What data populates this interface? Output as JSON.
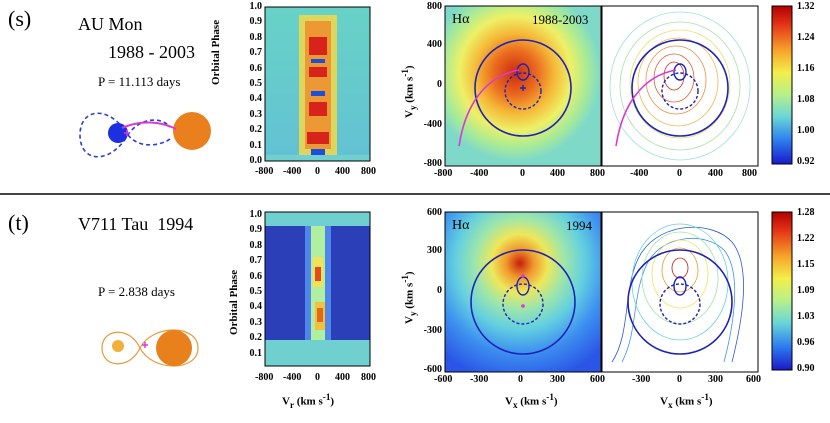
{
  "panels": [
    {
      "label": "(s)",
      "star": "AU Mon",
      "years": "1988 - 2003",
      "period": "P = 11.113 days",
      "line": "Hα",
      "map_years": "1988-2003",
      "phase_ticks": [
        "0.0",
        "0.1",
        "0.2",
        "0.3",
        "0.4",
        "0.5",
        "0.6",
        "0.7",
        "0.8",
        "0.9",
        "1.0"
      ],
      "vr_ticks": [
        "-800",
        "-400",
        "0",
        "400",
        "800"
      ],
      "vy_ticks": [
        "800",
        "400",
        "0",
        "-400",
        "-800"
      ],
      "vx_ticks": [
        "-800",
        "-400",
        "0",
        "400",
        "800"
      ],
      "vx_ticks_right": [
        "-400",
        "0",
        "400",
        "800"
      ],
      "colorbar_ticks": [
        "1.32",
        "1.24",
        "1.16",
        "1.08",
        "1.00",
        "0.92"
      ]
    },
    {
      "label": "(t)",
      "star": "V711 Tau",
      "years": "1994",
      "period": "P = 2.838 days",
      "line": "Hα",
      "map_years": "1994",
      "phase_ticks": [
        "0.1",
        "0.2",
        "0.3",
        "0.4",
        "0.5",
        "0.6",
        "0.7",
        "0.8",
        "0.9",
        "1.0"
      ],
      "vr_ticks": [
        "-800",
        "-400",
        "0",
        "400",
        "800"
      ],
      "vy_ticks": [
        "600",
        "300",
        "0",
        "-300",
        "-600"
      ],
      "vx_ticks": [
        "-600",
        "-300",
        "0",
        "300",
        "600"
      ],
      "vx_ticks_right": [
        "-300",
        "0",
        "300",
        "600"
      ],
      "colorbar_ticks": [
        "1.28",
        "1.22",
        "1.15",
        "1.09",
        "1.03",
        "0.96",
        "0.90"
      ]
    }
  ],
  "axis_labels": {
    "orbital_phase": "Orbital Phase",
    "vr": "V",
    "vr_sub": "r",
    "vx": "V",
    "vx_sub": "x",
    "vy": "V",
    "vy_sub": "y",
    "units": "(km s",
    "units_exp": "-1",
    "units_close": ")"
  },
  "colors": {
    "cyan": "#72d3cf",
    "blue": "#1b2fd6",
    "magenta": "#e23fd9",
    "orange": "#e8801c"
  }
}
